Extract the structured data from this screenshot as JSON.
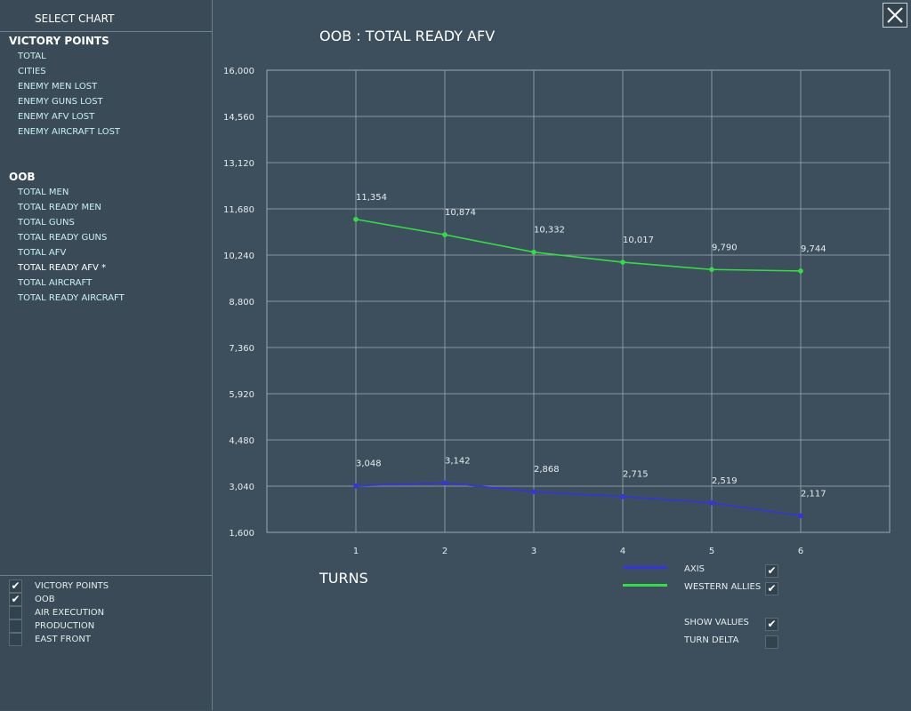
{
  "sidebar": {
    "title": "SELECT CHART",
    "groups": [
      {
        "label": "VICTORY POINTS",
        "items": [
          "TOTAL",
          "CITIES",
          "ENEMY MEN LOST",
          "ENEMY GUNS LOST",
          "ENEMY AFV LOST",
          "ENEMY AIRCRAFT LOST"
        ]
      },
      {
        "label": "OOB",
        "items": [
          "TOTAL MEN",
          "TOTAL READY MEN",
          "TOTAL GUNS",
          "TOTAL READY GUNS",
          "TOTAL AFV",
          "TOTAL READY AFV *",
          "TOTAL AIRCRAFT",
          "TOTAL READY AIRCRAFT"
        ]
      }
    ],
    "filters": [
      {
        "label": "VICTORY POINTS",
        "checked": true
      },
      {
        "label": "OOB",
        "checked": true
      },
      {
        "label": "AIR EXECUTION",
        "checked": false
      },
      {
        "label": "PRODUCTION",
        "checked": false
      },
      {
        "label": "EAST FRONT",
        "checked": false
      }
    ]
  },
  "legend": {
    "axis_label": "AXIS",
    "axis_checked": true,
    "allies_label": "WESTERN ALLIES",
    "allies_checked": true
  },
  "options": {
    "show_values_label": "SHOW VALUES",
    "show_values_checked": true,
    "turn_delta_label": "TURN DELTA",
    "turn_delta_checked": false
  },
  "colors": {
    "axis": "#3434e0",
    "allies": "#33dd44",
    "grid": "#9aa8b0"
  },
  "chart_data": {
    "type": "line",
    "title": "OOB : TOTAL READY AFV",
    "xlabel": "TURNS",
    "ylabel": "",
    "x": [
      1,
      2,
      3,
      4,
      5,
      6
    ],
    "xlim": [
      0,
      7
    ],
    "ylim": [
      1600,
      16000
    ],
    "yticks": [
      "16,000",
      "14,560",
      "13,120",
      "11,680",
      "10,240",
      "8,800",
      "7,360",
      "5,920",
      "4,480",
      "3,040",
      "1,600"
    ],
    "xticks": [
      "1",
      "2",
      "3",
      "4",
      "5",
      "6"
    ],
    "grid": true,
    "series": [
      {
        "name": "WESTERN ALLIES",
        "values": [
          11354,
          10874,
          10332,
          10017,
          9790,
          9744
        ],
        "labels": [
          "11,354",
          "10,874",
          "10,332",
          "10,017",
          "9,790",
          "9,744"
        ]
      },
      {
        "name": "AXIS",
        "values": [
          3048,
          3142,
          2868,
          2715,
          2519,
          2117
        ],
        "labels": [
          "3,048",
          "3,142",
          "2,868",
          "2,715",
          "2,519",
          "2,117"
        ]
      }
    ]
  }
}
